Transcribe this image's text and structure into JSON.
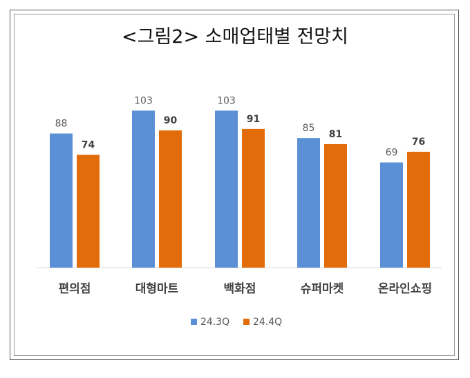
{
  "chart_data": {
    "type": "bar",
    "title": "<그림2> 소매업태별 전망치",
    "categories": [
      "편의점",
      "대형마트",
      "백화점",
      "슈퍼마켓",
      "온라인쇼핑"
    ],
    "series": [
      {
        "name": "24.3Q",
        "values": [
          88,
          103,
          103,
          85,
          69
        ],
        "color": "#5b8fd6"
      },
      {
        "name": "24.4Q",
        "values": [
          74,
          90,
          91,
          81,
          76
        ],
        "color": "#e36c0a"
      }
    ],
    "xlabel": "",
    "ylabel": "",
    "ylim": [
      0,
      105
    ],
    "grid": false,
    "legend": "bottom"
  }
}
